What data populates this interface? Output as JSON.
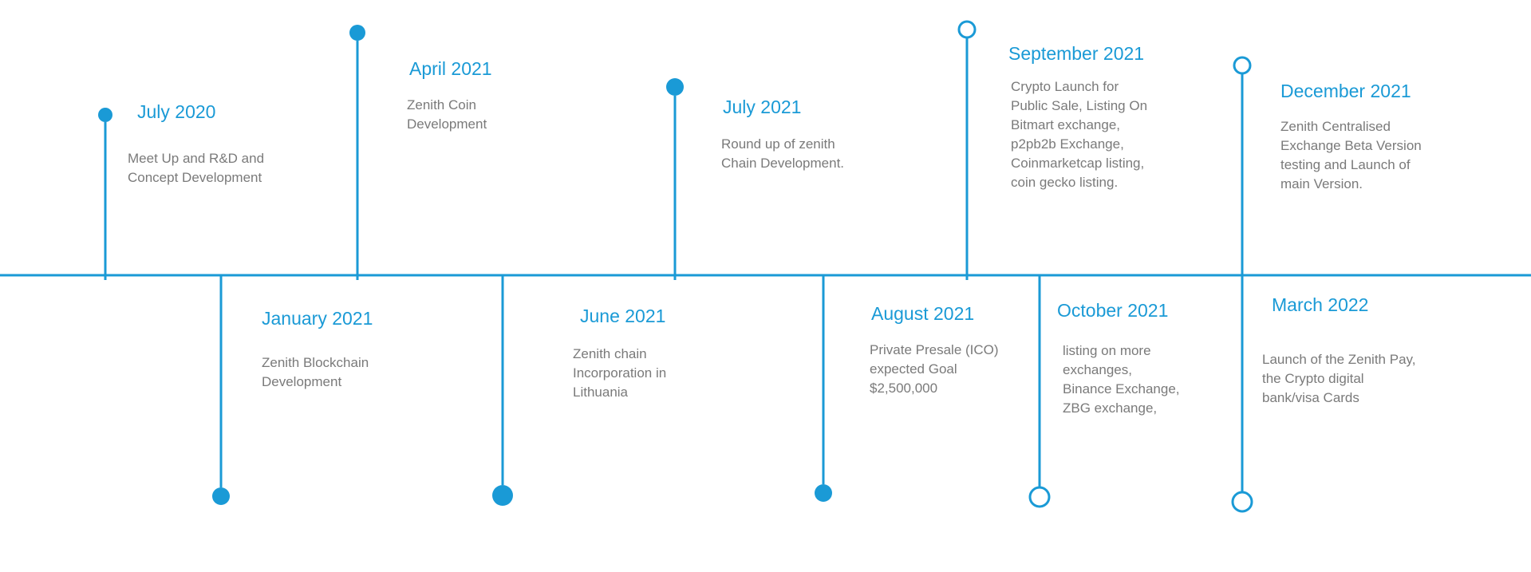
{
  "colors": {
    "line": "#1a9ad6",
    "title": "#1a9ad6",
    "text": "#7a7a7a"
  },
  "milestones": [
    {
      "date": "July 2020",
      "text": "Meet Up and R&D and\nConcept Development",
      "side": "above",
      "marker": "filled"
    },
    {
      "date": "January 2021",
      "text": "Zenith Blockchain\nDevelopment",
      "side": "below",
      "marker": "filled"
    },
    {
      "date": "April 2021",
      "text": "Zenith Coin\nDevelopment",
      "side": "above",
      "marker": "filled"
    },
    {
      "date": "June 2021",
      "text": "Zenith chain\nIncorporation in\nLithuania",
      "side": "below",
      "marker": "filled"
    },
    {
      "date": "July 2021",
      "text": "Round up of zenith\nChain Development.",
      "side": "above",
      "marker": "filled"
    },
    {
      "date": "August 2021",
      "text": "Private Presale (ICO)\nexpected Goal\n$2,500,000",
      "side": "below",
      "marker": "filled"
    },
    {
      "date": "September 2021",
      "text": "Crypto Launch for\nPublic Sale,  Listing On\nBitmart exchange,\np2pb2b Exchange,\nCoinmarketcap listing,\ncoin gecko listing.",
      "side": "above",
      "marker": "hollow"
    },
    {
      "date": "October 2021",
      "text": "listing on more\nexchanges,\nBinance Exchange,\nZBG exchange,",
      "side": "below",
      "marker": "hollow"
    },
    {
      "date": "December 2021",
      "text": "Zenith Centralised\nExchange Beta Version\ntesting and Launch of\nmain Version.",
      "side": "above",
      "marker": "hollow"
    },
    {
      "date": "March 2022",
      "text": "Launch of the Zenith Pay,\nthe Crypto digital\nbank/visa Cards",
      "side": "below",
      "marker": "hollow"
    }
  ]
}
